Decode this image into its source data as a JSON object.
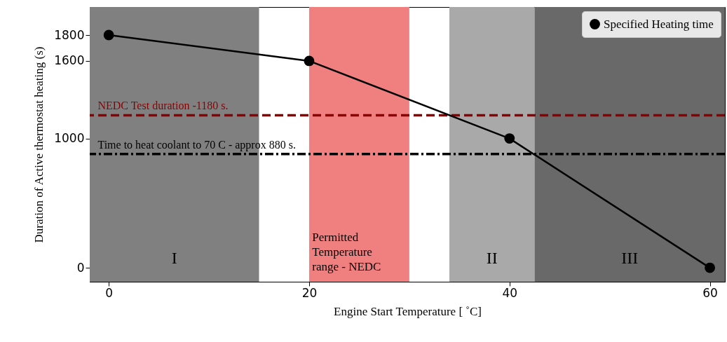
{
  "chart_data": {
    "type": "line",
    "xlabel": "Engine Start Temperature [ ˚C]",
    "ylabel": "Duration of Active thermostat heating (s)",
    "x": [
      0,
      20,
      40,
      60
    ],
    "series": [
      {
        "name": "Specified Heating time",
        "color": "#000000",
        "values": [
          1800,
          1600,
          1000,
          0
        ]
      }
    ],
    "xlim": [
      -1.9,
      61.5
    ],
    "ylim": [
      -108,
      2017
    ],
    "xticks": [
      0,
      20,
      40,
      60
    ],
    "yticks": [
      0,
      1000,
      1600,
      1800
    ],
    "marker": "circle",
    "line_style": "solid",
    "legend": "top right",
    "grid": false,
    "bands": [
      {
        "axis": "x",
        "from": -1.9,
        "to": 15,
        "label": "I",
        "color": "#808080"
      },
      {
        "axis": "x",
        "from": 20,
        "to": 30,
        "label": "Permitted\nTemperature\nrange - NEDC",
        "color": "#f08080"
      },
      {
        "axis": "x",
        "from": 34,
        "to": 42.5,
        "label": "II",
        "color": "#a9a9a9"
      },
      {
        "axis": "x",
        "from": 42.5,
        "to": 61.5,
        "label": "III",
        "color": "#696969"
      }
    ],
    "ref_lines": [
      {
        "axis": "y",
        "value": 1180,
        "label": "NEDC Test duration -1180 s.",
        "color": "#8b0000",
        "line_style": "dashed"
      },
      {
        "axis": "y",
        "value": 880,
        "label": "Time to heat coolant to 70 C - approx 880 s.",
        "color": "#000000",
        "line_style": "dashdot"
      }
    ]
  }
}
